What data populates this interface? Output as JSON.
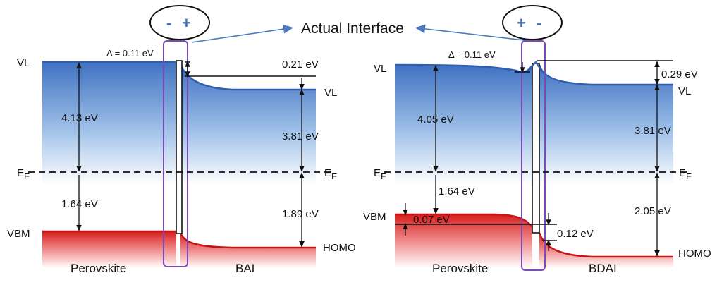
{
  "title": "Actual Interface",
  "colors": {
    "vacuum_fill_top": "#3f72c2",
    "homo_fill": "#d81e1e",
    "interface_box": "#7a4bb8",
    "arrow": "#4a78c0",
    "sign": "#3f6fb5"
  },
  "left_panel": {
    "interface_signs": [
      "-",
      "+"
    ],
    "delta": "Δ = 0.11 eV",
    "vl_left": "VL",
    "vl_right": "VL",
    "offset_vl": "0.21 eV",
    "work_fn_left": "4.13 eV",
    "work_fn_right": "3.81 eV",
    "ef_left": "E",
    "ef_right": "E",
    "ef_sub": "F",
    "vbm_gap_left": "1.64 eV",
    "homo_gap_right": "1.89 eV",
    "vbm": "VBM",
    "homo": "HOMO",
    "material_left": "Perovskite",
    "material_right": "BAI"
  },
  "right_panel": {
    "interface_signs": [
      "+",
      "-"
    ],
    "delta": "Δ = 0.11 eV",
    "vl_left": "VL",
    "vl_right": "VL",
    "offset_vl": "0.29 eV",
    "work_fn_left": "4.05 eV",
    "work_fn_right": "3.81 eV",
    "ef_left": "E",
    "ef_right": "E",
    "ef_sub": "F",
    "vbm_gap_left": "1.64 eV",
    "homo_gap_right": "2.05 eV",
    "vbm_shift": "0.07 eV",
    "homo_shift": "0.12 eV",
    "vbm": "VBM",
    "homo": "HOMO",
    "material_left": "Perovskite",
    "material_right": "BDAI"
  }
}
